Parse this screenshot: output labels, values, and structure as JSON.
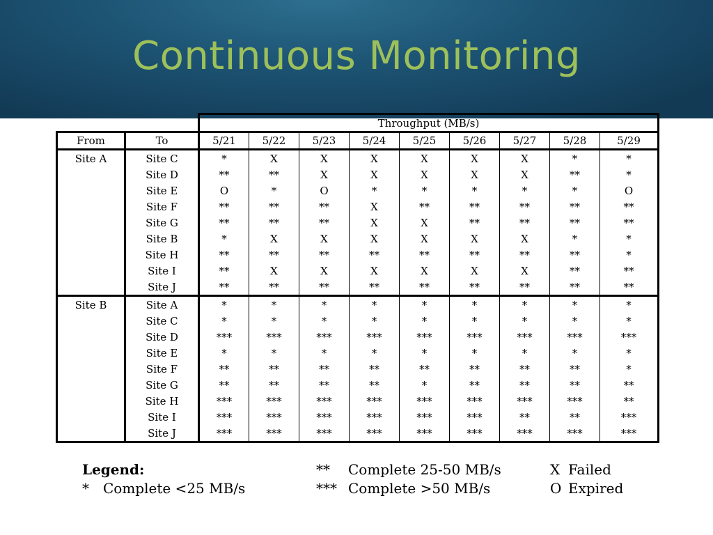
{
  "title": "Continuous Monitoring",
  "table": {
    "group_header": "Throughput (MB/s)",
    "from_header": "From",
    "to_header": "To",
    "dates": [
      "5/21",
      "5/22",
      "5/23",
      "5/24",
      "5/25",
      "5/26",
      "5/27",
      "5/28",
      "5/29"
    ],
    "groups": [
      {
        "from": "Site A",
        "rows": [
          {
            "to": "Site C",
            "values": [
              "*",
              "X",
              "X",
              "X",
              "X",
              "X",
              "X",
              "*",
              "*"
            ]
          },
          {
            "to": "Site D",
            "values": [
              "**",
              "**",
              "X",
              "X",
              "X",
              "X",
              "X",
              "**",
              "*"
            ]
          },
          {
            "to": "Site E",
            "values": [
              "O",
              "*",
              "O",
              "*",
              "*",
              "*",
              "*",
              "*",
              "O"
            ]
          },
          {
            "to": "Site F",
            "values": [
              "**",
              "**",
              "**",
              "X",
              "**",
              "**",
              "**",
              "**",
              "**"
            ]
          },
          {
            "to": "Site G",
            "values": [
              "**",
              "**",
              "**",
              "X",
              "X",
              "**",
              "**",
              "**",
              "**"
            ]
          },
          {
            "to": "Site B",
            "values": [
              "*",
              "X",
              "X",
              "X",
              "X",
              "X",
              "X",
              "*",
              "*"
            ]
          },
          {
            "to": "Site H",
            "values": [
              "**",
              "**",
              "**",
              "**",
              "**",
              "**",
              "**",
              "**",
              "*"
            ]
          },
          {
            "to": "Site I",
            "values": [
              "**",
              "X",
              "X",
              "X",
              "X",
              "X",
              "X",
              "**",
              "**"
            ]
          },
          {
            "to": "Site J",
            "values": [
              "**",
              "**",
              "**",
              "**",
              "**",
              "**",
              "**",
              "**",
              "**"
            ]
          }
        ]
      },
      {
        "from": "Site B",
        "rows": [
          {
            "to": "Site A",
            "values": [
              "*",
              "*",
              "*",
              "*",
              "*",
              "*",
              "*",
              "*",
              "*"
            ]
          },
          {
            "to": "Site C",
            "values": [
              "*",
              "*",
              "*",
              "*",
              "*",
              "*",
              "*",
              "*",
              "*"
            ]
          },
          {
            "to": "Site D",
            "values": [
              "***",
              "***",
              "***",
              "***",
              "***",
              "***",
              "***",
              "***",
              "***"
            ]
          },
          {
            "to": "Site E",
            "values": [
              "*",
              "*",
              "*",
              "*",
              "*",
              "*",
              "*",
              "*",
              "*"
            ]
          },
          {
            "to": "Site F",
            "values": [
              "**",
              "**",
              "**",
              "**",
              "**",
              "**",
              "**",
              "**",
              "*"
            ]
          },
          {
            "to": "Site G",
            "values": [
              "**",
              "**",
              "**",
              "**",
              "*",
              "**",
              "**",
              "**",
              "**"
            ]
          },
          {
            "to": "Site H",
            "values": [
              "***",
              "***",
              "***",
              "***",
              "***",
              "***",
              "***",
              "***",
              "**"
            ]
          },
          {
            "to": "Site I",
            "values": [
              "***",
              "***",
              "***",
              "***",
              "***",
              "***",
              "**",
              "**",
              "***"
            ]
          },
          {
            "to": "Site J",
            "values": [
              "***",
              "***",
              "***",
              "***",
              "***",
              "***",
              "***",
              "***",
              "***"
            ]
          }
        ]
      }
    ]
  },
  "legend": {
    "heading": "Legend:",
    "items": [
      {
        "symbol": "*",
        "text": "Complete <25 MB/s"
      },
      {
        "symbol": "**",
        "text": "Complete 25-50 MB/s"
      },
      {
        "symbol": "***",
        "text": "Complete >50 MB/s"
      },
      {
        "symbol": "X",
        "text": "Failed"
      },
      {
        "symbol": "O",
        "text": "Expired"
      }
    ]
  }
}
